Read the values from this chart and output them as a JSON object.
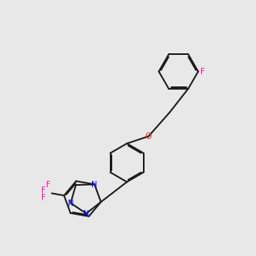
{
  "bg": "#e8e8e8",
  "bc": "#1a1a1a",
  "nc": "#0000ff",
  "oc": "#ff2200",
  "fc": "#ff00cc",
  "lw": 1.4,
  "dbo": 0.045,
  "fs": 7.5,
  "note": "All coordinates in data units 0-10. Atoms and bonds manually placed to match target."
}
